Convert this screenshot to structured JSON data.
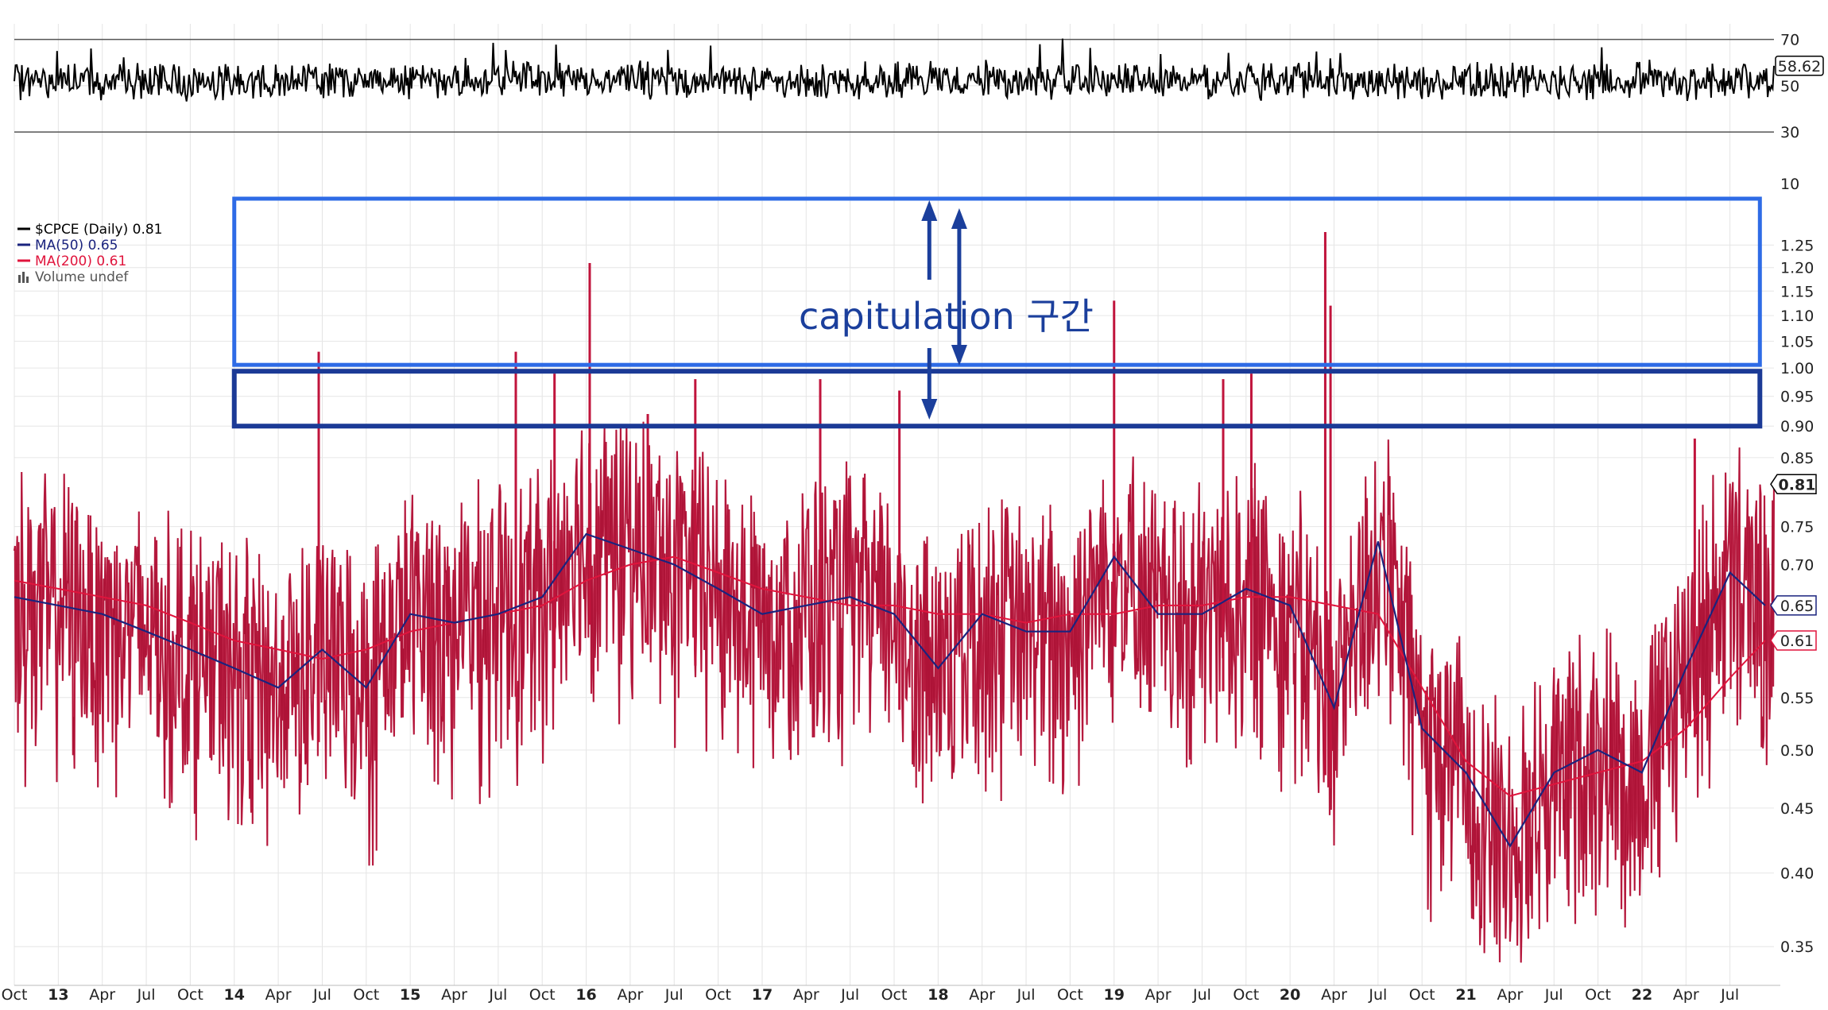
{
  "chart_data": [
    {
      "type": "line",
      "panel": "indicator",
      "ylim": [
        28,
        74
      ],
      "y_ticks": [
        {
          "value": 70,
          "label": "70"
        },
        {
          "value": 50,
          "label": "50"
        },
        {
          "value": 30,
          "label": "30"
        }
      ],
      "last_value_label": "58.62",
      "last_value": 58.62,
      "baseline": 52,
      "line_color": "#000000"
    },
    {
      "type": "line",
      "panel": "main",
      "scale": "log",
      "ylim": [
        0.33,
        1.42
      ],
      "legend": [
        {
          "text": "$CPCE (Daily) 0.81",
          "color": "#000000"
        },
        {
          "text": "MA(50) 0.65",
          "color": "#1a237e"
        },
        {
          "text": "MA(200) 0.61",
          "color": "#e0143c"
        },
        {
          "text": "Volume undef",
          "color": "#555555"
        }
      ],
      "y_ticks": [
        {
          "value": 1.25,
          "label": "1.25"
        },
        {
          "value": 1.2,
          "label": "1.20"
        },
        {
          "value": 1.15,
          "label": "1.15"
        },
        {
          "value": 1.1,
          "label": "1.10"
        },
        {
          "value": 1.05,
          "label": "1.05"
        },
        {
          "value": 1.0,
          "label": "1.00"
        },
        {
          "value": 0.95,
          "label": "0.95"
        },
        {
          "value": 0.9,
          "label": "0.90"
        },
        {
          "value": 0.85,
          "label": "0.85"
        },
        {
          "value": 0.75,
          "label": "0.75"
        },
        {
          "value": 0.7,
          "label": "0.70"
        },
        {
          "value": 0.55,
          "label": "0.55"
        },
        {
          "value": 0.5,
          "label": "0.50"
        },
        {
          "value": 0.45,
          "label": "0.45"
        },
        {
          "value": 0.4,
          "label": "0.40"
        },
        {
          "value": 0.35,
          "label": "0.35"
        }
      ],
      "price_labels": [
        {
          "value": 0.81,
          "label": "0.81",
          "color": "#000000"
        },
        {
          "value": 0.65,
          "label": "0.65",
          "color": "#1a237e"
        },
        {
          "value": 0.61,
          "label": "0.61",
          "color": "#e0143c"
        }
      ],
      "x": [
        2012.75,
        2013.0,
        2013.25,
        2013.5,
        2013.75,
        2014.0,
        2014.25,
        2014.5,
        2014.75,
        2015.0,
        2015.25,
        2015.5,
        2015.75,
        2016.0,
        2016.25,
        2016.5,
        2016.75,
        2017.0,
        2017.25,
        2017.5,
        2017.75,
        2018.0,
        2018.25,
        2018.5,
        2018.75,
        2019.0,
        2019.25,
        2019.5,
        2019.75,
        2020.0,
        2020.25,
        2020.5,
        2020.75,
        2021.0,
        2021.25,
        2021.5,
        2021.75,
        2022.0,
        2022.25,
        2022.5,
        2022.7
      ],
      "series": [
        {
          "name": "MA(50)",
          "color": "#1a237e",
          "values": [
            0.66,
            0.65,
            0.64,
            0.62,
            0.6,
            0.58,
            0.56,
            0.6,
            0.56,
            0.64,
            0.63,
            0.64,
            0.66,
            0.74,
            0.72,
            0.7,
            0.67,
            0.64,
            0.65,
            0.66,
            0.64,
            0.58,
            0.64,
            0.62,
            0.62,
            0.71,
            0.64,
            0.64,
            0.67,
            0.65,
            0.54,
            0.73,
            0.52,
            0.48,
            0.42,
            0.48,
            0.5,
            0.48,
            0.58,
            0.69,
            0.65
          ]
        },
        {
          "name": "MA(200)",
          "color": "#e0143c",
          "values": [
            0.68,
            0.67,
            0.66,
            0.65,
            0.63,
            0.61,
            0.6,
            0.59,
            0.6,
            0.62,
            0.63,
            0.64,
            0.65,
            0.68,
            0.7,
            0.71,
            0.69,
            0.67,
            0.66,
            0.65,
            0.65,
            0.64,
            0.64,
            0.63,
            0.64,
            0.64,
            0.65,
            0.65,
            0.66,
            0.66,
            0.65,
            0.64,
            0.56,
            0.49,
            0.46,
            0.47,
            0.48,
            0.49,
            0.52,
            0.57,
            0.61
          ]
        }
      ],
      "spike_peaks": [
        {
          "x": 2014.48,
          "value": 1.03
        },
        {
          "x": 2015.6,
          "value": 1.03
        },
        {
          "x": 2015.82,
          "value": 0.99
        },
        {
          "x": 2016.02,
          "value": 1.21
        },
        {
          "x": 2016.35,
          "value": 0.92
        },
        {
          "x": 2016.62,
          "value": 0.98
        },
        {
          "x": 2017.33,
          "value": 0.98
        },
        {
          "x": 2017.78,
          "value": 0.96
        },
        {
          "x": 2019.0,
          "value": 1.13
        },
        {
          "x": 2019.62,
          "value": 0.98
        },
        {
          "x": 2019.78,
          "value": 0.99
        },
        {
          "x": 2020.2,
          "value": 1.28
        },
        {
          "x": 2020.23,
          "value": 1.12
        },
        {
          "x": 2022.3,
          "value": 0.88
        }
      ],
      "last_close": 0.81
    }
  ],
  "x_axis": {
    "labels": [
      {
        "x": 2012.75,
        "label": "Oct",
        "bold": false
      },
      {
        "x": 2013.0,
        "label": "13",
        "bold": true
      },
      {
        "x": 2013.25,
        "label": "Apr",
        "bold": false
      },
      {
        "x": 2013.5,
        "label": "Jul",
        "bold": false
      },
      {
        "x": 2013.75,
        "label": "Oct",
        "bold": false
      },
      {
        "x": 2014.0,
        "label": "14",
        "bold": true
      },
      {
        "x": 2014.25,
        "label": "Apr",
        "bold": false
      },
      {
        "x": 2014.5,
        "label": "Jul",
        "bold": false
      },
      {
        "x": 2014.75,
        "label": "Oct",
        "bold": false
      },
      {
        "x": 2015.0,
        "label": "15",
        "bold": true
      },
      {
        "x": 2015.25,
        "label": "Apr",
        "bold": false
      },
      {
        "x": 2015.5,
        "label": "Jul",
        "bold": false
      },
      {
        "x": 2015.75,
        "label": "Oct",
        "bold": false
      },
      {
        "x": 2016.0,
        "label": "16",
        "bold": true
      },
      {
        "x": 2016.25,
        "label": "Apr",
        "bold": false
      },
      {
        "x": 2016.5,
        "label": "Jul",
        "bold": false
      },
      {
        "x": 2016.75,
        "label": "Oct",
        "bold": false
      },
      {
        "x": 2017.0,
        "label": "17",
        "bold": true
      },
      {
        "x": 2017.25,
        "label": "Apr",
        "bold": false
      },
      {
        "x": 2017.5,
        "label": "Jul",
        "bold": false
      },
      {
        "x": 2017.75,
        "label": "Oct",
        "bold": false
      },
      {
        "x": 2018.0,
        "label": "18",
        "bold": true
      },
      {
        "x": 2018.25,
        "label": "Apr",
        "bold": false
      },
      {
        "x": 2018.5,
        "label": "Jul",
        "bold": false
      },
      {
        "x": 2018.75,
        "label": "Oct",
        "bold": false
      },
      {
        "x": 2019.0,
        "label": "19",
        "bold": true
      },
      {
        "x": 2019.25,
        "label": "Apr",
        "bold": false
      },
      {
        "x": 2019.5,
        "label": "Jul",
        "bold": false
      },
      {
        "x": 2019.75,
        "label": "Oct",
        "bold": false
      },
      {
        "x": 2020.0,
        "label": "20",
        "bold": true
      },
      {
        "x": 2020.25,
        "label": "Apr",
        "bold": false
      },
      {
        "x": 2020.5,
        "label": "Jul",
        "bold": false
      },
      {
        "x": 2020.75,
        "label": "Oct",
        "bold": false
      },
      {
        "x": 2021.0,
        "label": "21",
        "bold": true
      },
      {
        "x": 2021.25,
        "label": "Apr",
        "bold": false
      },
      {
        "x": 2021.5,
        "label": "Jul",
        "bold": false
      },
      {
        "x": 2021.75,
        "label": "Oct",
        "bold": false
      },
      {
        "x": 2022.0,
        "label": "22",
        "bold": true
      },
      {
        "x": 2022.25,
        "label": "Apr",
        "bold": false
      },
      {
        "x": 2022.5,
        "label": "Jul",
        "bold": false
      }
    ]
  },
  "annotation": {
    "text": "capitulation 구간",
    "upper_zone": {
      "y_from": 1.0,
      "y_to": 1.42,
      "color": "#2e6be6"
    },
    "lower_zone": {
      "y_from": 0.9,
      "y_to": 1.0,
      "color": "#1b3a96"
    }
  }
}
